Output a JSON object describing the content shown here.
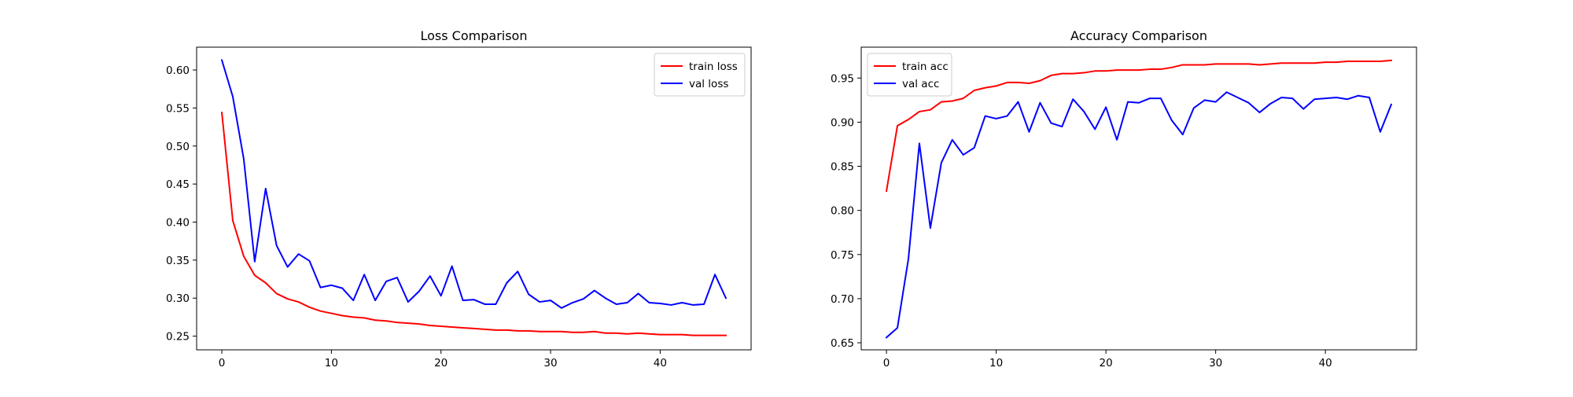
{
  "figure": {
    "background": "#ffffff"
  },
  "chart_data": [
    {
      "type": "line",
      "title": "Loss Comparison",
      "xlabel": "",
      "ylabel": "",
      "xlim": [
        -2.3,
        48.3
      ],
      "ylim": [
        0.232,
        0.63
      ],
      "xticks": [
        0,
        10,
        20,
        30,
        40
      ],
      "yticks": [
        0.25,
        0.3,
        0.35,
        0.4,
        0.45,
        0.5,
        0.55,
        0.6
      ],
      "ytick_labels": [
        "0.25",
        "0.30",
        "0.35",
        "0.40",
        "0.45",
        "0.50",
        "0.55",
        "0.60"
      ],
      "grid": false,
      "legend": "top-right",
      "x": [
        0,
        1,
        2,
        3,
        4,
        5,
        6,
        7,
        8,
        9,
        10,
        11,
        12,
        13,
        14,
        15,
        16,
        17,
        18,
        19,
        20,
        21,
        22,
        23,
        24,
        25,
        26,
        27,
        28,
        29,
        30,
        31,
        32,
        33,
        34,
        35,
        36,
        37,
        38,
        39,
        40,
        41,
        42,
        43,
        44,
        45,
        46
      ],
      "series": [
        {
          "name": "train loss",
          "color": "#ff0000",
          "values": [
            0.544,
            0.402,
            0.355,
            0.33,
            0.32,
            0.306,
            0.299,
            0.295,
            0.288,
            0.283,
            0.28,
            0.277,
            0.275,
            0.274,
            0.271,
            0.27,
            0.268,
            0.267,
            0.266,
            0.264,
            0.263,
            0.262,
            0.261,
            0.26,
            0.259,
            0.258,
            0.258,
            0.257,
            0.257,
            0.256,
            0.256,
            0.256,
            0.255,
            0.255,
            0.256,
            0.254,
            0.254,
            0.253,
            0.254,
            0.253,
            0.252,
            0.252,
            0.252,
            0.251,
            0.251,
            0.251,
            0.251
          ]
        },
        {
          "name": "val loss",
          "color": "#0000ff",
          "values": [
            0.613,
            0.565,
            0.483,
            0.348,
            0.444,
            0.369,
            0.341,
            0.358,
            0.349,
            0.314,
            0.317,
            0.313,
            0.297,
            0.331,
            0.297,
            0.322,
            0.327,
            0.295,
            0.309,
            0.329,
            0.303,
            0.342,
            0.297,
            0.298,
            0.292,
            0.292,
            0.32,
            0.335,
            0.305,
            0.295,
            0.297,
            0.287,
            0.294,
            0.299,
            0.31,
            0.3,
            0.292,
            0.294,
            0.306,
            0.294,
            0.293,
            0.291,
            0.294,
            0.291,
            0.292,
            0.331,
            0.3
          ]
        }
      ]
    },
    {
      "type": "line",
      "title": "Accuracy Comparison",
      "xlabel": "",
      "ylabel": "",
      "xlim": [
        -2.3,
        48.3
      ],
      "ylim": [
        0.642,
        0.985
      ],
      "xticks": [
        0,
        10,
        20,
        30,
        40
      ],
      "yticks": [
        0.65,
        0.7,
        0.75,
        0.8,
        0.85,
        0.9,
        0.95
      ],
      "ytick_labels": [
        "0.65",
        "0.70",
        "0.75",
        "0.80",
        "0.85",
        "0.90",
        "0.95"
      ],
      "grid": false,
      "legend": "top-left",
      "x": [
        0,
        1,
        2,
        3,
        4,
        5,
        6,
        7,
        8,
        9,
        10,
        11,
        12,
        13,
        14,
        15,
        16,
        17,
        18,
        19,
        20,
        21,
        22,
        23,
        24,
        25,
        26,
        27,
        28,
        29,
        30,
        31,
        32,
        33,
        34,
        35,
        36,
        37,
        38,
        39,
        40,
        41,
        42,
        43,
        44,
        45,
        46
      ],
      "series": [
        {
          "name": "train acc",
          "color": "#ff0000",
          "values": [
            0.822,
            0.896,
            0.903,
            0.912,
            0.914,
            0.923,
            0.924,
            0.927,
            0.936,
            0.939,
            0.941,
            0.945,
            0.945,
            0.944,
            0.947,
            0.953,
            0.955,
            0.955,
            0.956,
            0.958,
            0.958,
            0.959,
            0.959,
            0.959,
            0.96,
            0.96,
            0.962,
            0.965,
            0.965,
            0.965,
            0.966,
            0.966,
            0.966,
            0.966,
            0.965,
            0.966,
            0.967,
            0.967,
            0.967,
            0.967,
            0.968,
            0.968,
            0.969,
            0.969,
            0.969,
            0.969,
            0.97
          ]
        },
        {
          "name": "val acc",
          "color": "#0000ff",
          "values": [
            0.656,
            0.667,
            0.745,
            0.876,
            0.78,
            0.854,
            0.88,
            0.863,
            0.871,
            0.907,
            0.904,
            0.907,
            0.923,
            0.889,
            0.922,
            0.899,
            0.895,
            0.926,
            0.912,
            0.892,
            0.917,
            0.88,
            0.923,
            0.922,
            0.927,
            0.927,
            0.902,
            0.886,
            0.916,
            0.925,
            0.923,
            0.934,
            0.928,
            0.922,
            0.911,
            0.921,
            0.928,
            0.927,
            0.915,
            0.926,
            0.927,
            0.928,
            0.926,
            0.93,
            0.928,
            0.889,
            0.92
          ]
        }
      ]
    }
  ]
}
